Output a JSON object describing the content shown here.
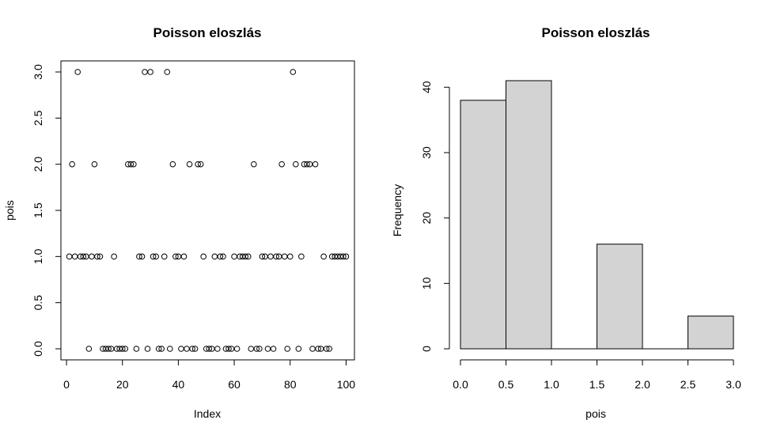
{
  "chart_data": [
    {
      "type": "scatter",
      "title": "Poisson eloszlás",
      "xlabel": "Index",
      "ylabel": "pois",
      "xlim": [
        -2,
        103
      ],
      "ylim": [
        -0.12,
        3.12
      ],
      "xticks": [
        0,
        20,
        40,
        60,
        80,
        100
      ],
      "yticks": [
        0.0,
        0.5,
        1.0,
        1.5,
        2.0,
        2.5,
        3.0
      ],
      "xtick_labels": [
        "0",
        "20",
        "40",
        "60",
        "80",
        "100"
      ],
      "ytick_labels": [
        "0.0",
        "0.5",
        "1.0",
        "1.5",
        "2.0",
        "2.5",
        "3.0"
      ],
      "marker": "open-circle",
      "grid": false,
      "x": [
        1,
        2,
        3,
        4,
        5,
        6,
        7,
        8,
        9,
        10,
        11,
        12,
        13,
        14,
        15,
        16,
        17,
        18,
        19,
        20,
        21,
        22,
        23,
        24,
        25,
        26,
        27,
        28,
        29,
        30,
        31,
        32,
        33,
        34,
        35,
        36,
        37,
        38,
        39,
        40,
        41,
        42,
        43,
        44,
        45,
        46,
        47,
        48,
        49,
        50,
        51,
        52,
        53,
        54,
        55,
        56,
        57,
        58,
        59,
        60,
        61,
        62,
        63,
        64,
        65,
        66,
        67,
        68,
        69,
        70,
        71,
        72,
        73,
        74,
        75,
        76,
        77,
        78,
        79,
        80,
        81,
        82,
        83,
        84,
        85,
        86,
        87,
        88,
        89,
        90,
        91,
        92,
        93,
        94,
        95,
        96,
        97,
        98,
        99,
        100
      ],
      "y": [
        1,
        2,
        1,
        3,
        1,
        1,
        1,
        0,
        1,
        2,
        1,
        1,
        0,
        0,
        0,
        0,
        1,
        0,
        0,
        0,
        0,
        2,
        2,
        2,
        0,
        1,
        1,
        3,
        0,
        3,
        1,
        1,
        0,
        0,
        1,
        3,
        0,
        2,
        1,
        1,
        0,
        1,
        0,
        2,
        0,
        0,
        2,
        2,
        1,
        0,
        0,
        0,
        1,
        0,
        1,
        1,
        0,
        0,
        0,
        1,
        0,
        1,
        1,
        1,
        1,
        0,
        2,
        0,
        0,
        1,
        1,
        0,
        1,
        0,
        1,
        1,
        2,
        1,
        0,
        1,
        3,
        2,
        0,
        1,
        2,
        2,
        2,
        0,
        2,
        0,
        0,
        1,
        0,
        0,
        1,
        1,
        1,
        1,
        1,
        1
      ]
    },
    {
      "type": "bar",
      "title": "Poisson eloszlás",
      "xlabel": "pois",
      "ylabel": "Frequency",
      "bins": [
        [
          0,
          0.5
        ],
        [
          0.5,
          1.0
        ],
        [
          1.0,
          1.5
        ],
        [
          1.5,
          2.0
        ],
        [
          2.0,
          2.5
        ],
        [
          2.5,
          3.0
        ]
      ],
      "values": [
        38,
        41,
        0,
        16,
        0,
        5
      ],
      "xlim": [
        0,
        3.0
      ],
      "ylim": [
        0,
        41
      ],
      "xticks": [
        0,
        0.5,
        1.0,
        1.5,
        2.0,
        2.5,
        3.0
      ],
      "yticks": [
        0,
        10,
        20,
        30,
        40
      ],
      "xtick_labels": [
        "0.0",
        "0.5",
        "1.0",
        "1.5",
        "2.0",
        "2.5",
        "3.0"
      ],
      "ytick_labels": [
        "0",
        "10",
        "20",
        "30",
        "40"
      ],
      "bar_color": "#d3d3d3",
      "grid": false
    }
  ]
}
